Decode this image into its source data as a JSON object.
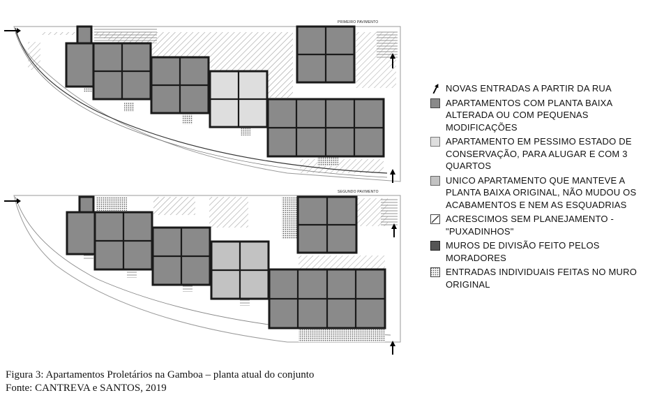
{
  "plans": {
    "top_title": "PRIMEIRO PAVIMENTO",
    "bottom_title": "SEGUNDO PAVIMENTO"
  },
  "legend": {
    "items": [
      {
        "key": "new-entrances",
        "symbol": "arrow",
        "text": "NOVAS ENTRADAS A PARTIR DA RUA"
      },
      {
        "key": "altered",
        "symbol": "swatch",
        "color": "#8a8a8a",
        "text": "APARTAMENTOS COM PLANTA BAIXA ALTERADA OU COM PEQUENAS MODIFICAÇÕES"
      },
      {
        "key": "poor-state",
        "symbol": "swatch",
        "color": "#dedede",
        "text": "APARTAMENTO EM PESSIMO ESTADO DE CONSERVAÇÃO, PARA ALUGAR E COM 3 QUARTOS"
      },
      {
        "key": "original",
        "symbol": "swatch",
        "color": "#c2c2c2",
        "text": "UNICO APARTAMENTO QUE MANTEVE A PLANTA BAIXA ORIGINAL, NÃO MUDOU OS ACABAMENTOS E NEM AS ESQUADRIAS"
      },
      {
        "key": "additions",
        "symbol": "hatch",
        "text": "ACRESCIMOS SEM PLANEJAMENTO - \"PUXADINHOS\""
      },
      {
        "key": "walls",
        "symbol": "swatch",
        "color": "#555555",
        "text": "MUROS DE DIVISÃO FEITO PELOS MORADORES"
      },
      {
        "key": "entrances",
        "symbol": "dots",
        "text": "ENTRADAS INDIVIDUAIS FEITAS NO MURO ORIGINAL"
      }
    ]
  },
  "caption": {
    "line1": "Figura 3: Apartamentos Proletários na Gamboa – planta atual do conjunto",
    "line2": "Fonte: CANTREVA e SANTOS, 2019"
  },
  "colors": {
    "altered": "#8a8a8a",
    "poor": "#dedede",
    "original": "#c2c2c2",
    "wall": "#1a1a1a"
  }
}
